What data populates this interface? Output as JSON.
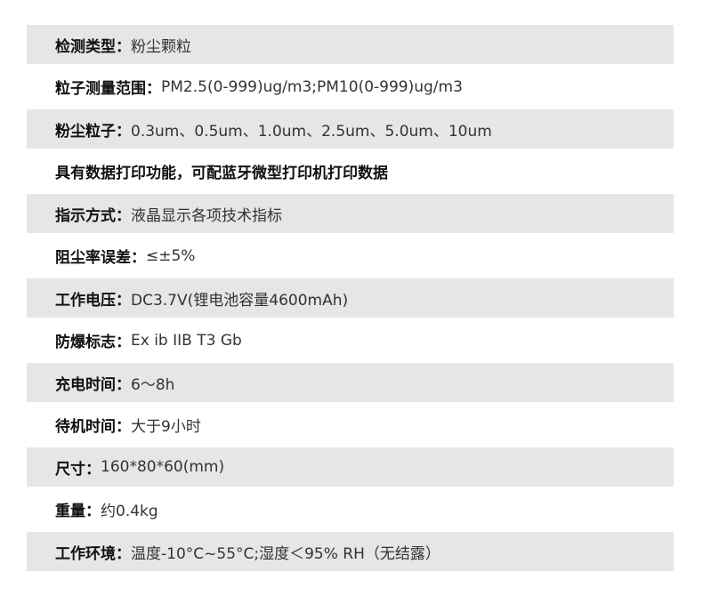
{
  "specs": [
    {
      "label": "检测类型：",
      "value": "粉尘颗粒"
    },
    {
      "label": "粒子测量范围：",
      "value": "PM2.5(0-999)ug/m3;PM10(0-999)ug/m3"
    },
    {
      "label": "粉尘粒子：",
      "value": "0.3um、0.5um、1.0um、2.5um、5.0um、10um"
    },
    {
      "label": "具有数据打印功能，可配蓝牙微型打印机打印数据",
      "value": ""
    },
    {
      "label": "指示方式：",
      "value": "液晶显示各项技术指标"
    },
    {
      "label": "阻尘率误差：",
      "value": "≤±5%"
    },
    {
      "label": "工作电压：",
      "value": "DC3.7V(锂电池容量4600mAh)"
    },
    {
      "label": "防爆标志：",
      "value": "Ex ib IIB T3 Gb"
    },
    {
      "label": "充电时间：",
      "value": "6～8h"
    },
    {
      "label": "待机时间：",
      "value": "大于9小时"
    },
    {
      "label": "尺寸：",
      "value": "160*80*60(mm)"
    },
    {
      "label": "重量：",
      "value": "约0.4kg"
    },
    {
      "label": "工作环境：",
      "value": "温度-10°C~55°C;湿度＜95% RH（无结露）"
    }
  ]
}
